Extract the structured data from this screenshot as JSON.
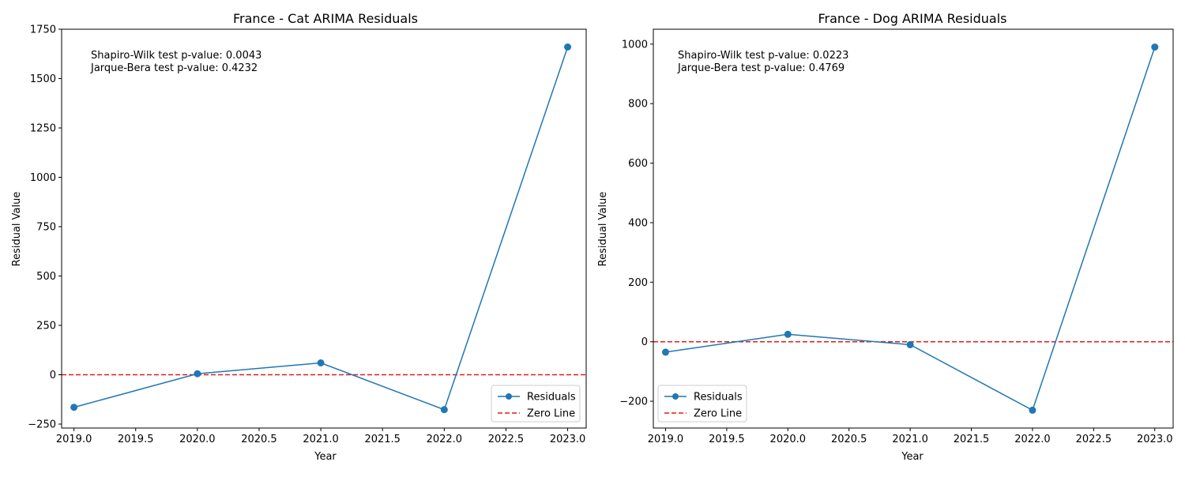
{
  "colors": {
    "residual": "#1f77b4",
    "zero_line": "#e41a1c",
    "frame": "#000000",
    "legend_border": "#cccccc"
  },
  "chart_data": [
    {
      "type": "line",
      "title": "France - Cat ARIMA Residuals",
      "xlabel": "Year",
      "ylabel": "Residual Value",
      "xlim": [
        2018.9,
        2023.15
      ],
      "ylim": [
        -270,
        1750
      ],
      "xticks": [
        2019.0,
        2019.5,
        2020.0,
        2020.5,
        2021.0,
        2021.5,
        2022.0,
        2022.5,
        2023.0
      ],
      "xtick_labels": [
        "2019.0",
        "2019.5",
        "2020.0",
        "2020.5",
        "2021.0",
        "2021.5",
        "2022.0",
        "2022.5",
        "2023.0"
      ],
      "yticks": [
        -250,
        0,
        250,
        500,
        750,
        1000,
        1250,
        1500,
        1750
      ],
      "ytick_labels": [
        "−250",
        "0",
        "250",
        "500",
        "750",
        "1000",
        "1250",
        "1500",
        "1750"
      ],
      "grid": false,
      "legend_position": "lower-right",
      "annotations": [
        "Shapiro-Wilk test p-value: 0.0043",
        "Jarque-Bera test p-value: 0.4232"
      ],
      "series": [
        {
          "name": "Residuals",
          "style": "line-marker",
          "x": [
            2019,
            2020,
            2021,
            2022,
            2023
          ],
          "y": [
            -165,
            5,
            60,
            -177,
            1660
          ]
        },
        {
          "name": "Zero Line",
          "style": "dashed",
          "y_constant": 0
        }
      ]
    },
    {
      "type": "line",
      "title": "France - Dog ARIMA Residuals",
      "xlabel": "Year",
      "ylabel": "Residual Value",
      "xlim": [
        2018.9,
        2023.15
      ],
      "ylim": [
        -290,
        1050
      ],
      "xticks": [
        2019.0,
        2019.5,
        2020.0,
        2020.5,
        2021.0,
        2021.5,
        2022.0,
        2022.5,
        2023.0
      ],
      "xtick_labels": [
        "2019.0",
        "2019.5",
        "2020.0",
        "2020.5",
        "2021.0",
        "2021.5",
        "2022.0",
        "2022.5",
        "2023.0"
      ],
      "yticks": [
        -200,
        0,
        200,
        400,
        600,
        800,
        1000
      ],
      "ytick_labels": [
        "−200",
        "0",
        "200",
        "400",
        "600",
        "800",
        "1000"
      ],
      "grid": false,
      "legend_position": "lower-left",
      "annotations": [
        "Shapiro-Wilk test p-value: 0.0223",
        "Jarque-Bera test p-value: 0.4769"
      ],
      "series": [
        {
          "name": "Residuals",
          "style": "line-marker",
          "x": [
            2019,
            2020,
            2021,
            2022,
            2023
          ],
          "y": [
            -35,
            25,
            -10,
            -230,
            990
          ]
        },
        {
          "name": "Zero Line",
          "style": "dashed",
          "y_constant": 0
        }
      ]
    }
  ]
}
